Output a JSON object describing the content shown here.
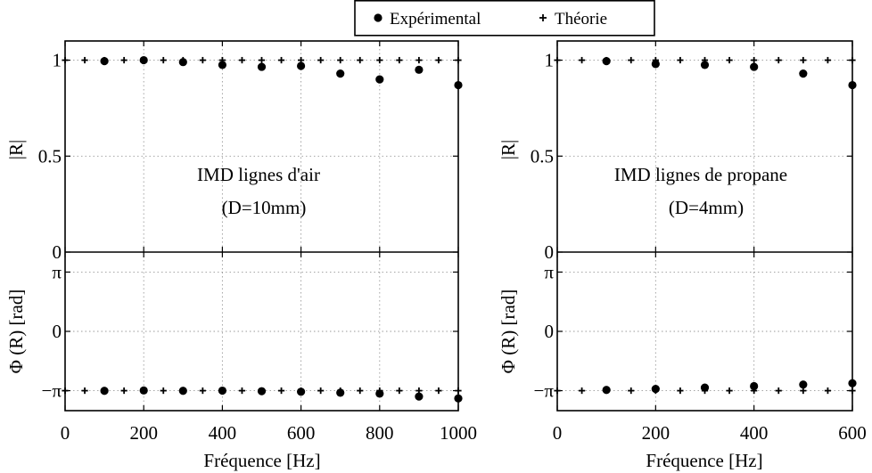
{
  "legend": {
    "items": [
      {
        "symbol": "dot",
        "label": "Expérimental"
      },
      {
        "symbol": "plus",
        "label": "Théorie"
      }
    ]
  },
  "chart_data": [
    {
      "type": "scatter",
      "panel": "left",
      "annotation": [
        "IMD lignes d'air",
        "(D=10mm)"
      ],
      "xlabel": "Fréquence [Hz]",
      "xlim": [
        0,
        1000
      ],
      "xticks": [
        0,
        200,
        400,
        600,
        800,
        1000
      ],
      "xtick_labels": [
        "0",
        "200",
        "400",
        "600",
        "800",
        "1000"
      ],
      "magnitude": {
        "ylabel": "|R|",
        "ylim": [
          0,
          1.1
        ],
        "yticks": [
          0,
          0.5,
          1
        ],
        "ytick_labels": [
          "0",
          "0.5",
          "1"
        ],
        "grid": true,
        "series": [
          {
            "name": "Expérimental",
            "marker": "dot",
            "x": [
              100,
              200,
              300,
              400,
              500,
              600,
              700,
              800,
              900,
              1000
            ],
            "y": [
              0.995,
              1.0,
              0.99,
              0.975,
              0.965,
              0.97,
              0.93,
              0.9,
              0.95,
              0.87
            ]
          },
          {
            "name": "Théorie",
            "marker": "plus",
            "x": [
              0,
              50,
              100,
              150,
              200,
              250,
              300,
              350,
              400,
              450,
              500,
              550,
              600,
              650,
              700,
              750,
              800,
              850,
              900,
              950,
              1000
            ],
            "y": [
              1,
              1,
              1,
              1,
              1,
              1,
              1,
              1,
              1,
              1,
              1,
              1,
              1,
              1,
              1,
              1,
              1,
              1,
              1,
              1,
              1
            ]
          }
        ]
      },
      "phase": {
        "ylabel": "Φ (R) [rad]",
        "ylim": [
          -4.2,
          4.2
        ],
        "yticks": [
          -3.14159,
          0,
          3.14159
        ],
        "ytick_labels": [
          "−π",
          "0",
          "π"
        ],
        "grid": true,
        "series": [
          {
            "name": "Expérimental",
            "marker": "dot",
            "x": [
              100,
              200,
              300,
              400,
              500,
              600,
              700,
              800,
              900,
              1000
            ],
            "y": [
              -3.15,
              -3.13,
              -3.15,
              -3.14,
              -3.17,
              -3.2,
              -3.25,
              -3.3,
              -3.45,
              -3.55
            ]
          },
          {
            "name": "Théorie",
            "marker": "plus",
            "x": [
              0,
              50,
              100,
              150,
              200,
              250,
              300,
              350,
              400,
              450,
              500,
              550,
              600,
              650,
              700,
              750,
              800,
              850,
              900,
              950,
              1000
            ],
            "y": [
              -3.14159,
              -3.14159,
              -3.14159,
              -3.14159,
              -3.14159,
              -3.14159,
              -3.14159,
              -3.14159,
              -3.14159,
              -3.14159,
              -3.14159,
              -3.14159,
              -3.14159,
              -3.14159,
              -3.14159,
              -3.14159,
              -3.14159,
              -3.14159,
              -3.14159,
              -3.14159,
              -3.14159
            ]
          }
        ]
      }
    },
    {
      "type": "scatter",
      "panel": "right",
      "annotation": [
        "IMD lignes de propane",
        "(D=4mm)"
      ],
      "xlabel": "Fréquence [Hz]",
      "xlim": [
        0,
        600
      ],
      "xticks": [
        0,
        200,
        400,
        600
      ],
      "xtick_labels": [
        "0",
        "200",
        "400",
        "600"
      ],
      "magnitude": {
        "ylabel": "|R|",
        "ylim": [
          0,
          1.1
        ],
        "yticks": [
          0,
          0.5,
          1
        ],
        "ytick_labels": [
          "0",
          "0.5",
          "1"
        ],
        "grid": true,
        "series": [
          {
            "name": "Expérimental",
            "marker": "dot",
            "x": [
              100,
              200,
              300,
              400,
              500,
              600
            ],
            "y": [
              0.995,
              0.98,
              0.975,
              0.965,
              0.93,
              0.87
            ]
          },
          {
            "name": "Théorie",
            "marker": "plus",
            "x": [
              0,
              50,
              100,
              150,
              200,
              250,
              300,
              350,
              400,
              450,
              500,
              550,
              600
            ],
            "y": [
              1,
              1,
              1,
              1,
              1,
              1,
              1,
              1,
              1,
              1,
              1,
              1,
              1
            ]
          }
        ]
      },
      "phase": {
        "ylabel": "Φ (R) [rad]",
        "ylim": [
          -4.2,
          4.2
        ],
        "yticks": [
          -3.14159,
          0,
          3.14159
        ],
        "ytick_labels": [
          "−π",
          "0",
          "π"
        ],
        "grid": true,
        "series": [
          {
            "name": "Expérimental",
            "marker": "dot",
            "x": [
              100,
              200,
              300,
              400,
              500,
              600
            ],
            "y": [
              -3.1,
              -3.05,
              -2.98,
              -2.9,
              -2.82,
              -2.75
            ]
          },
          {
            "name": "Théorie",
            "marker": "plus",
            "x": [
              0,
              50,
              100,
              150,
              200,
              250,
              300,
              350,
              400,
              450,
              500,
              550,
              600
            ],
            "y": [
              -3.14159,
              -3.14159,
              -3.14159,
              -3.14159,
              -3.14159,
              -3.14159,
              -3.14159,
              -3.14159,
              -3.14159,
              -3.14159,
              -3.14159,
              -3.14159,
              -3.14159
            ]
          }
        ]
      }
    }
  ]
}
